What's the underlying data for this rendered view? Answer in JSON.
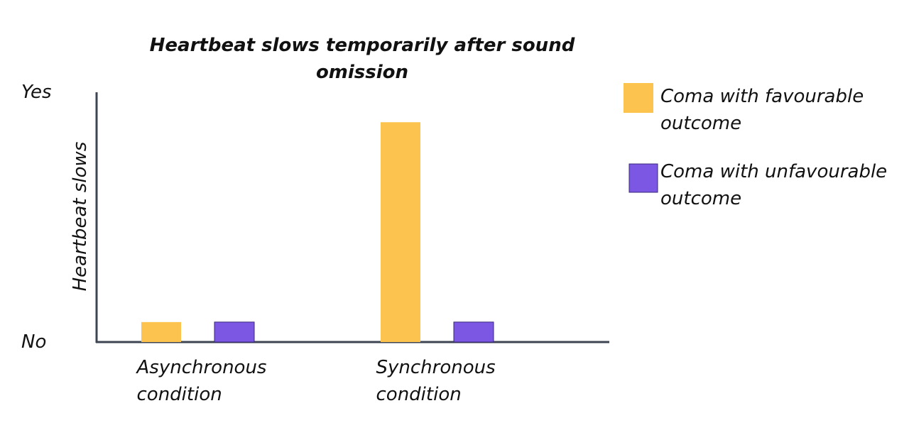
{
  "chart_data": {
    "type": "bar",
    "title": "Heartbeat slows temporarily after sound omission",
    "y_label": "Heartbeat slows",
    "categories": [
      "Asynchronous condition",
      "Synchronous condition"
    ],
    "series": [
      {
        "name": "Coma with favourable outcome",
        "color": "#fcc44f",
        "values": [
          0.08,
          0.88
        ]
      },
      {
        "name": "Coma with unfavourable outcome",
        "color": "#7b57e4",
        "values": [
          0.08,
          0.08
        ]
      }
    ],
    "ylim": [
      0,
      1
    ],
    "yticks": [
      {
        "value": 0,
        "label": "No"
      },
      {
        "value": 1,
        "label": "Yes"
      }
    ],
    "grid": false,
    "legend": "right"
  }
}
